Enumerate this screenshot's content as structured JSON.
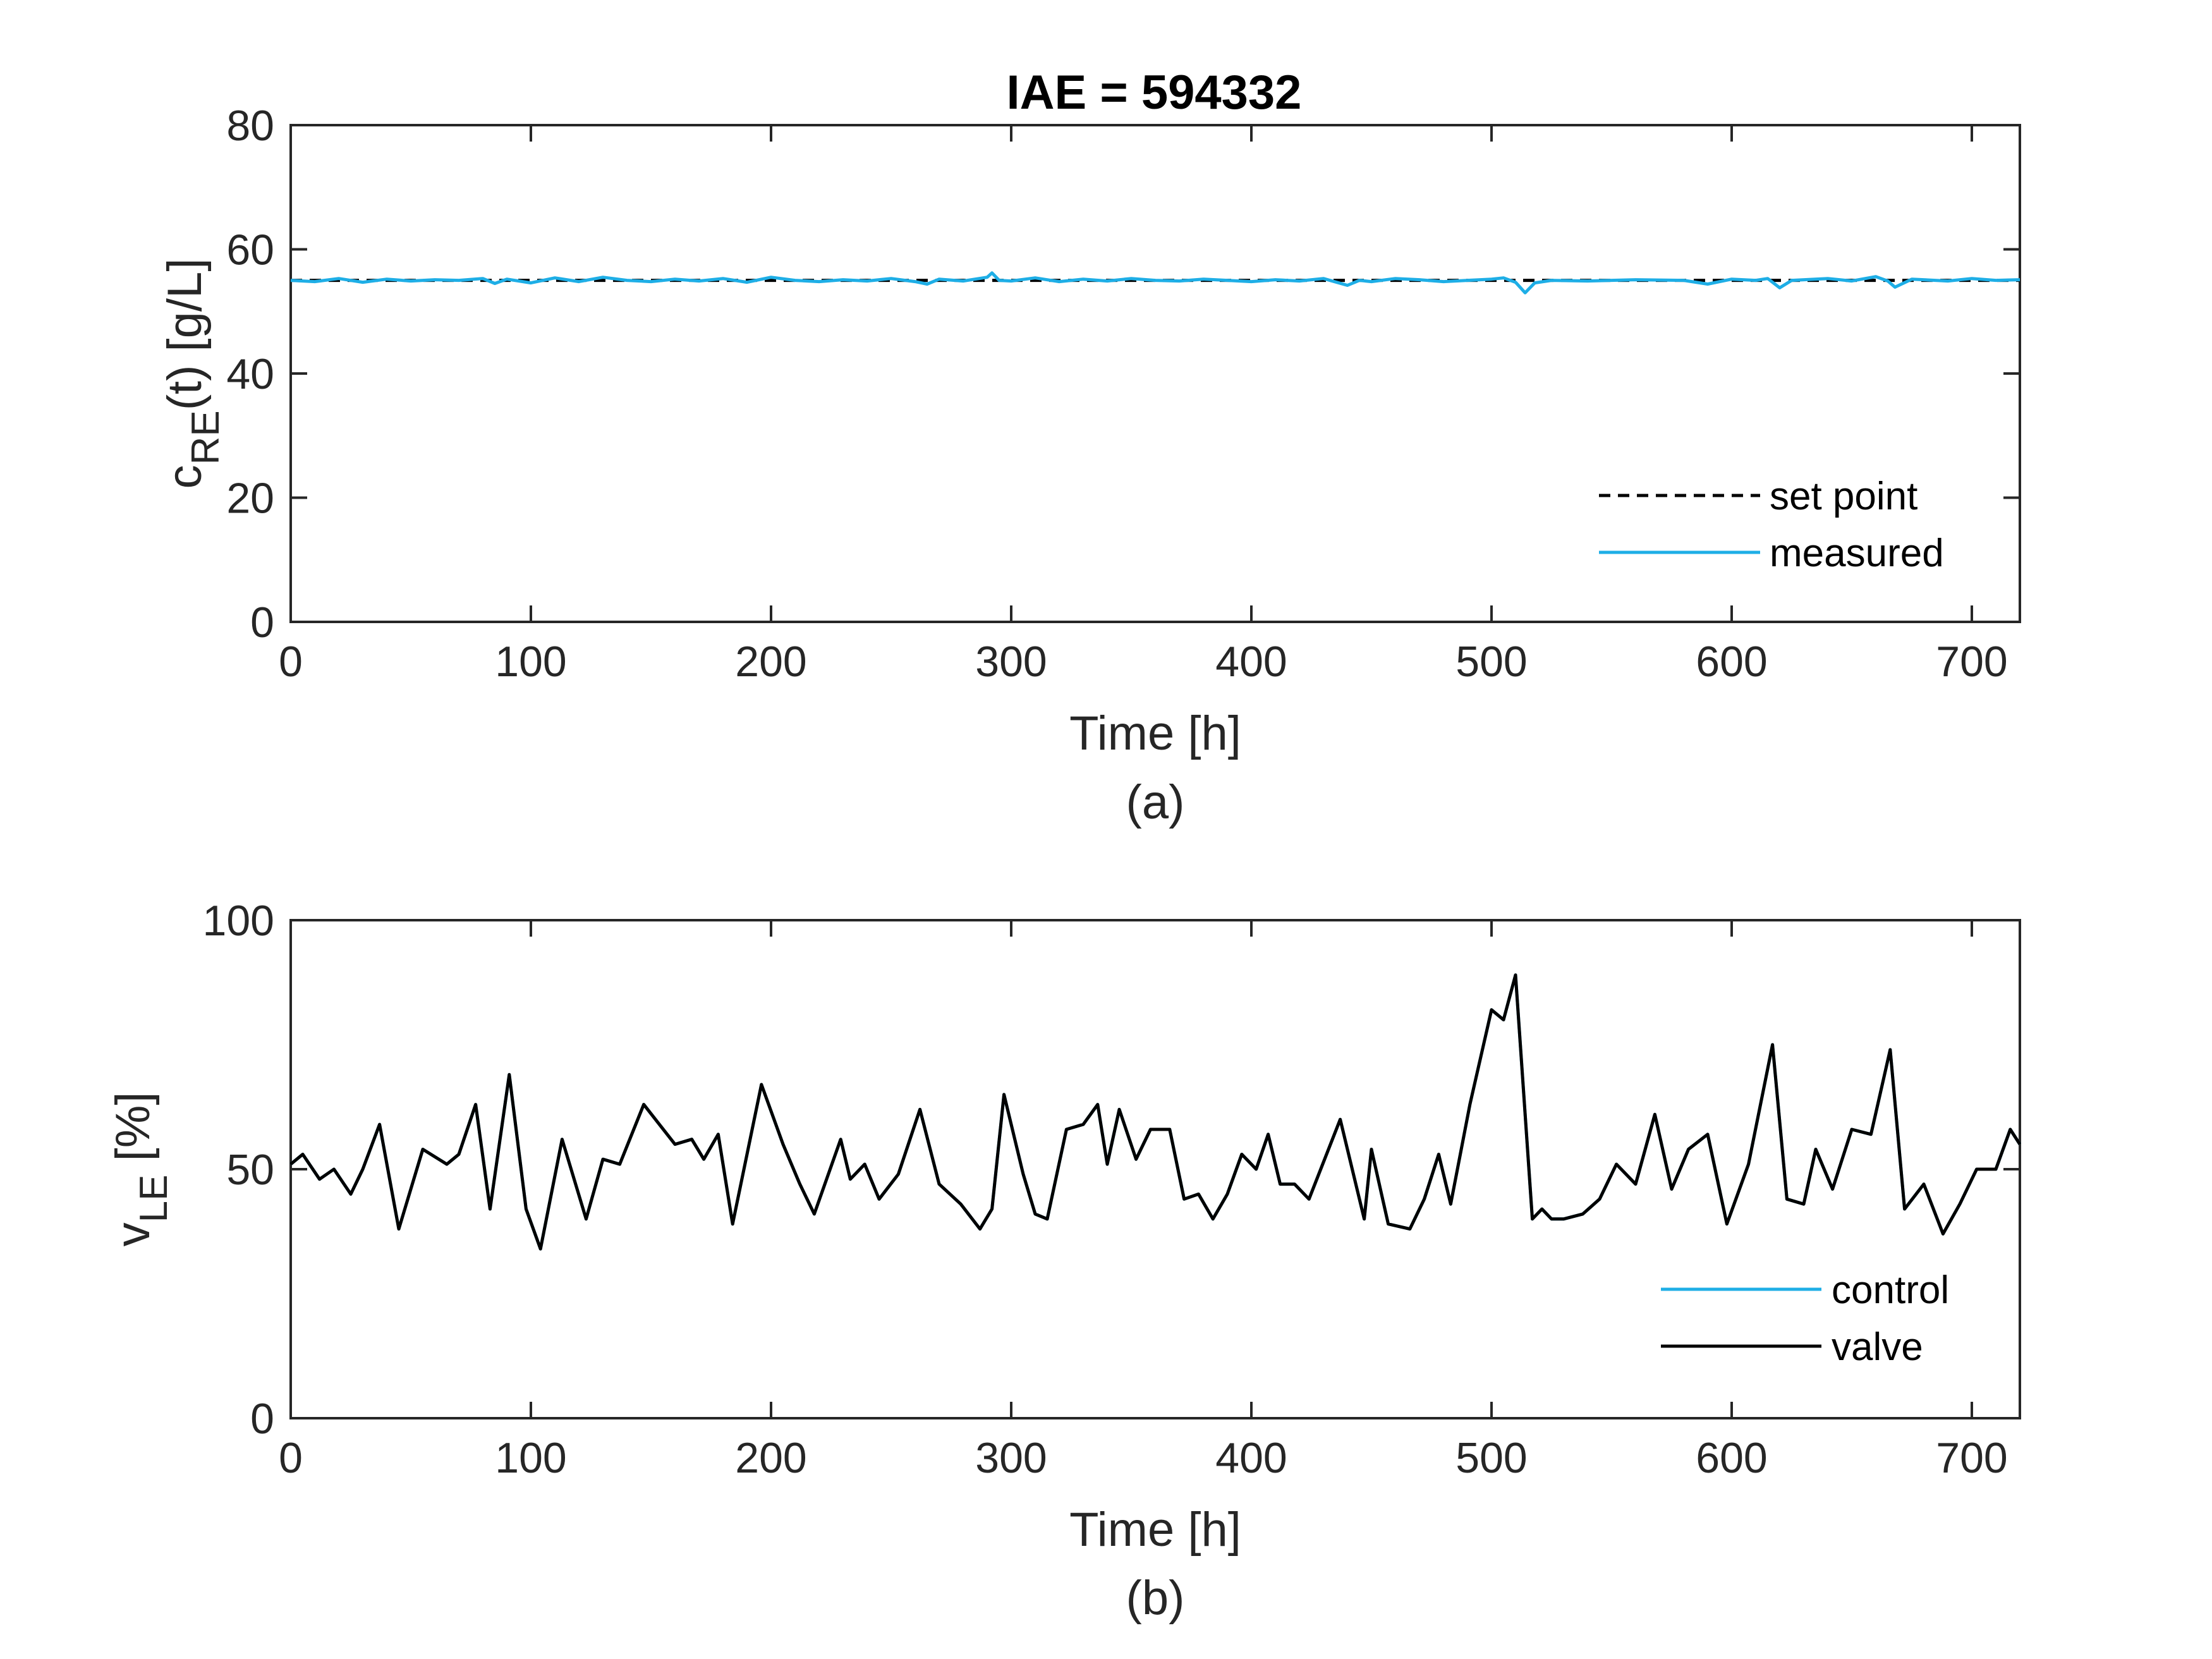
{
  "chart_data": [
    {
      "type": "line",
      "title": "IAE = 594332",
      "xlabel": "Time [h]",
      "ylabel_main": "c",
      "ylabel_sub": "RE",
      "ylabel_tail": "(t) [g/L]",
      "panel_label": "(a)",
      "xlim": [
        0,
        720
      ],
      "ylim": [
        0,
        80
      ],
      "xticks": [
        0,
        100,
        200,
        300,
        400,
        500,
        600,
        700
      ],
      "yticks": [
        0,
        20,
        40,
        60,
        80
      ],
      "legend_position": "bottom-right",
      "series": [
        {
          "name": "set point",
          "color": "#000000",
          "style": "dashed",
          "x": [
            0,
            720
          ],
          "y": [
            55,
            55
          ]
        },
        {
          "name": "measured",
          "color": "#1EAEE6",
          "style": "solid",
          "x": [
            0,
            10,
            20,
            30,
            40,
            50,
            60,
            70,
            80,
            85,
            90,
            100,
            110,
            120,
            130,
            140,
            150,
            160,
            170,
            180,
            190,
            200,
            210,
            220,
            230,
            240,
            250,
            260,
            265,
            270,
            280,
            290,
            292,
            295,
            300,
            310,
            320,
            330,
            340,
            350,
            360,
            370,
            380,
            390,
            400,
            410,
            420,
            430,
            440,
            445,
            450,
            460,
            470,
            480,
            490,
            500,
            505,
            510,
            514,
            518,
            525,
            540,
            560,
            580,
            590,
            600,
            610,
            615,
            620,
            625,
            640,
            650,
            660,
            665,
            668,
            675,
            690,
            700,
            710,
            720
          ],
          "y": [
            55.0,
            54.8,
            55.3,
            54.7,
            55.2,
            54.9,
            55.1,
            55.0,
            55.3,
            54.5,
            55.2,
            54.6,
            55.4,
            54.8,
            55.5,
            55.0,
            54.8,
            55.2,
            54.9,
            55.3,
            54.7,
            55.5,
            55.0,
            54.8,
            55.1,
            54.9,
            55.3,
            54.8,
            54.4,
            55.2,
            54.9,
            55.5,
            56.2,
            55.0,
            54.9,
            55.4,
            54.8,
            55.2,
            54.9,
            55.3,
            55.0,
            54.9,
            55.2,
            55.0,
            54.8,
            55.1,
            54.9,
            55.3,
            54.2,
            55.0,
            54.8,
            55.3,
            55.1,
            54.8,
            55.0,
            55.2,
            55.4,
            54.7,
            53.0,
            54.6,
            55.0,
            54.9,
            55.1,
            55.0,
            54.4,
            55.2,
            55.0,
            55.3,
            53.8,
            55.0,
            55.3,
            54.9,
            55.6,
            54.9,
            53.9,
            55.2,
            54.9,
            55.3,
            55.0,
            55.1
          ]
        }
      ]
    },
    {
      "type": "line",
      "title": "",
      "xlabel": "Time [h]",
      "ylabel_main": "v",
      "ylabel_sub": "LE",
      "ylabel_tail": " [%]",
      "panel_label": "(b)",
      "xlim": [
        0,
        720
      ],
      "ylim": [
        0,
        100
      ],
      "xticks": [
        0,
        100,
        200,
        300,
        400,
        500,
        600,
        700
      ],
      "yticks": [
        0,
        50,
        100
      ],
      "legend_position": "bottom-right",
      "series": [
        {
          "name": "control",
          "color": "#1EAEE6",
          "style": "solid",
          "x": [
            0,
            5,
            12,
            18,
            25,
            30,
            37,
            45,
            55,
            65,
            70,
            77,
            83,
            91,
            98,
            104,
            113,
            123,
            130,
            137,
            147,
            160,
            167,
            172,
            178,
            184,
            196,
            205,
            212,
            218,
            229,
            233,
            239,
            245,
            253,
            262,
            270,
            279,
            287,
            292,
            297,
            305,
            310,
            315,
            323,
            330,
            336,
            340,
            345,
            352,
            358,
            366,
            372,
            378,
            384,
            390,
            396,
            402,
            407,
            412,
            418,
            424,
            437,
            447,
            450,
            457,
            466,
            472,
            478,
            483,
            491,
            500,
            505,
            510,
            517,
            521,
            525,
            530,
            538,
            545,
            552,
            560,
            568,
            575,
            582,
            590,
            598,
            607,
            617,
            623,
            630,
            635,
            642,
            650,
            658,
            666,
            672,
            680,
            688,
            695,
            702,
            710,
            716,
            720
          ],
          "y": [
            51,
            53,
            48,
            50,
            45,
            50,
            59,
            38,
            54,
            51,
            53,
            63,
            42,
            69,
            42,
            34,
            56,
            40,
            52,
            51,
            63,
            55,
            56,
            52,
            57,
            39,
            67,
            55,
            47,
            41,
            56,
            48,
            51,
            44,
            49,
            62,
            47,
            43,
            38,
            42,
            65,
            49,
            41,
            40,
            58,
            59,
            63,
            51,
            62,
            52,
            58,
            58,
            44,
            45,
            40,
            45,
            53,
            50,
            57,
            47,
            47,
            44,
            60,
            40,
            54,
            39,
            38,
            44,
            53,
            43,
            63,
            82,
            80,
            89,
            40,
            42,
            40,
            40,
            41,
            44,
            51,
            47,
            61,
            46,
            54,
            57,
            39,
            51,
            75,
            44,
            43,
            54,
            46,
            58,
            57,
            74,
            42,
            47,
            37,
            43,
            50,
            50,
            58,
            55
          ]
        },
        {
          "name": "valve",
          "color": "#000000",
          "style": "solid",
          "x": [
            0,
            5,
            12,
            18,
            25,
            30,
            37,
            45,
            55,
            65,
            70,
            77,
            83,
            91,
            98,
            104,
            113,
            123,
            130,
            137,
            147,
            160,
            167,
            172,
            178,
            184,
            196,
            205,
            212,
            218,
            229,
            233,
            239,
            245,
            253,
            262,
            270,
            279,
            287,
            292,
            297,
            305,
            310,
            315,
            323,
            330,
            336,
            340,
            345,
            352,
            358,
            366,
            372,
            378,
            384,
            390,
            396,
            402,
            407,
            412,
            418,
            424,
            437,
            447,
            450,
            457,
            466,
            472,
            478,
            483,
            491,
            500,
            505,
            510,
            517,
            521,
            525,
            530,
            538,
            545,
            552,
            560,
            568,
            575,
            582,
            590,
            598,
            607,
            617,
            623,
            630,
            635,
            642,
            650,
            658,
            666,
            672,
            680,
            688,
            695,
            702,
            710,
            716,
            720
          ],
          "y": [
            51,
            53,
            48,
            50,
            45,
            50,
            59,
            38,
            54,
            51,
            53,
            63,
            42,
            69,
            42,
            34,
            56,
            40,
            52,
            51,
            63,
            55,
            56,
            52,
            57,
            39,
            67,
            55,
            47,
            41,
            56,
            48,
            51,
            44,
            49,
            62,
            47,
            43,
            38,
            42,
            65,
            49,
            41,
            40,
            58,
            59,
            63,
            51,
            62,
            52,
            58,
            58,
            44,
            45,
            40,
            45,
            53,
            50,
            57,
            47,
            47,
            44,
            60,
            40,
            54,
            39,
            38,
            44,
            53,
            43,
            63,
            82,
            80,
            89,
            40,
            42,
            40,
            40,
            41,
            44,
            51,
            47,
            61,
            46,
            54,
            57,
            39,
            51,
            75,
            44,
            43,
            54,
            46,
            58,
            57,
            74,
            42,
            47,
            37,
            43,
            50,
            50,
            58,
            55
          ]
        }
      ]
    }
  ]
}
